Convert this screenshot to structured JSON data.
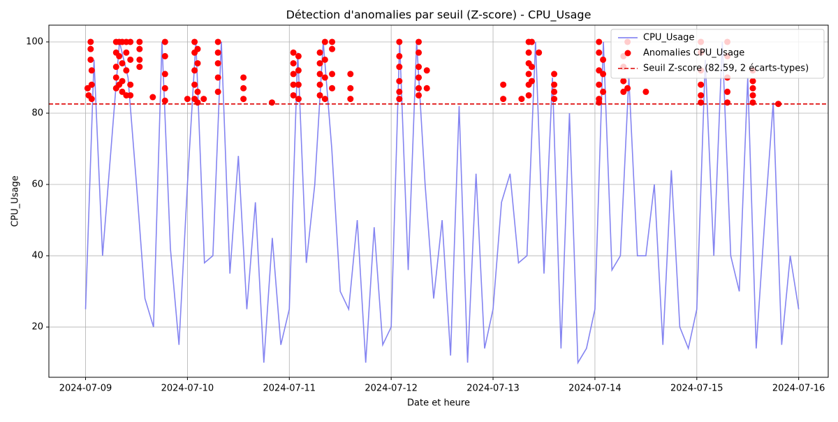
{
  "chart_data": {
    "type": "line",
    "title": "Détection d'anomalies par seuil (Z-score) - CPU_Usage",
    "x_label": "Date et heure",
    "y_label": "CPU_Usage",
    "xlim": [
      -0.36,
      7.29
    ],
    "ylim": [
      5.9,
      104.7
    ],
    "xticks": [
      {
        "value": 0,
        "label": "2024-07-09"
      },
      {
        "value": 1,
        "label": "2024-07-10"
      },
      {
        "value": 2,
        "label": "2024-07-11"
      },
      {
        "value": 3,
        "label": "2024-07-12"
      },
      {
        "value": 4,
        "label": "2024-07-13"
      },
      {
        "value": 5,
        "label": "2024-07-14"
      },
      {
        "value": 6,
        "label": "2024-07-15"
      },
      {
        "value": 7,
        "label": "2024-07-16"
      }
    ],
    "yticks": [
      20,
      40,
      60,
      80,
      100
    ],
    "grid": true,
    "legend": "upper right",
    "series": [
      {
        "name": "CPU_Usage",
        "type": "line",
        "color": "#7777f0",
        "x": [
          0,
          0.083,
          0.167,
          0.25,
          0.333,
          0.417,
          0.5,
          0.583,
          0.667,
          0.75,
          0.833,
          0.917,
          1,
          1.083,
          1.167,
          1.25,
          1.333,
          1.417,
          1.5,
          1.583,
          1.667,
          1.75,
          1.833,
          1.917,
          2,
          2.083,
          2.167,
          2.25,
          2.333,
          2.417,
          2.5,
          2.583,
          2.667,
          2.75,
          2.833,
          2.917,
          3,
          3.083,
          3.167,
          3.25,
          3.333,
          3.417,
          3.5,
          3.583,
          3.667,
          3.75,
          3.833,
          3.917,
          4,
          4.083,
          4.167,
          4.25,
          4.333,
          4.417,
          4.5,
          4.583,
          4.667,
          4.75,
          4.833,
          4.917,
          5,
          5.083,
          5.167,
          5.25,
          5.333,
          5.417,
          5.5,
          5.583,
          5.667,
          5.75,
          5.833,
          5.917,
          6,
          6.083,
          6.167,
          6.25,
          6.333,
          6.417,
          6.5,
          6.583,
          6.667,
          6.75,
          6.833,
          6.917,
          7
        ],
        "values": [
          25,
          95,
          40,
          70,
          100,
          90,
          60,
          28,
          20,
          100,
          42,
          15,
          60,
          100,
          38,
          40,
          100,
          35,
          68,
          25,
          55,
          10,
          45,
          15,
          25,
          97,
          38,
          60,
          100,
          70,
          30,
          25,
          50,
          10,
          48,
          15,
          20,
          100,
          36,
          100,
          60,
          28,
          50,
          12,
          82,
          10,
          63,
          14,
          25,
          55,
          63,
          38,
          40,
          100,
          35,
          90,
          14,
          80,
          10,
          14,
          25,
          100,
          36,
          40,
          90,
          40,
          40,
          60,
          15,
          64,
          20,
          14,
          25,
          95,
          40,
          100,
          40,
          30,
          90,
          14,
          50,
          83,
          15,
          40,
          25
        ]
      },
      {
        "name": "Anomalies CPU_Usage",
        "type": "scatter",
        "color": "#ff0000",
        "x": [
          0.02,
          0.03,
          0.05,
          0.05,
          0.05,
          0.06,
          0.06,
          0.06,
          0.3,
          0.3,
          0.3,
          0.3,
          0.3,
          0.33,
          0.33,
          0.33,
          0.36,
          0.36,
          0.36,
          0.36,
          0.4,
          0.4,
          0.4,
          0.4,
          0.44,
          0.44,
          0.44,
          0.44,
          0.53,
          0.53,
          0.53,
          0.53,
          0.66,
          0.78,
          0.78,
          0.78,
          0.78,
          0.78,
          1.0,
          1.07,
          1.07,
          1.07,
          1.07,
          1.07,
          1.1,
          1.1,
          1.1,
          1.1,
          1.16,
          1.3,
          1.3,
          1.3,
          1.3,
          1.3,
          1.55,
          1.55,
          1.55,
          1.83,
          2.04,
          2.04,
          2.04,
          2.04,
          2.04,
          2.09,
          2.09,
          2.09,
          2.09,
          2.3,
          2.3,
          2.3,
          2.3,
          2.3,
          2.35,
          2.35,
          2.35,
          2.35,
          2.42,
          2.42,
          2.42,
          2.42,
          2.6,
          2.6,
          2.6,
          3.08,
          3.08,
          3.08,
          3.08,
          3.08,
          3.08,
          3.27,
          3.27,
          3.27,
          3.27,
          3.27,
          3.27,
          3.35,
          3.35,
          4.1,
          4.1,
          4.28,
          4.35,
          4.35,
          4.35,
          4.35,
          4.35,
          4.35,
          4.38,
          4.38,
          4.38,
          4.45,
          4.6,
          4.6,
          4.6,
          4.6,
          5.04,
          5.04,
          5.04,
          5.04,
          5.04,
          5.04,
          5.08,
          5.08,
          5.08,
          5.28,
          5.28,
          5.28,
          5.28,
          5.32,
          5.32,
          5.5,
          6.04,
          6.04,
          6.04,
          6.04,
          6.04,
          6.04,
          6.3,
          6.3,
          6.3,
          6.3,
          6.3,
          6.55,
          6.55,
          6.55,
          6.55,
          6.55,
          6.8
        ],
        "values": [
          87,
          85,
          100,
          98,
          95,
          92,
          88,
          84,
          100,
          97,
          93,
          90,
          87,
          100,
          96,
          88,
          100,
          94,
          89,
          86,
          100,
          97,
          92,
          85,
          100,
          95,
          88,
          85,
          100,
          98,
          95,
          93,
          84.5,
          100,
          96,
          91,
          87,
          83.5,
          84,
          100,
          97,
          92,
          88,
          84,
          98,
          94,
          86,
          83,
          84,
          100,
          97,
          94,
          90,
          86,
          90,
          87,
          84,
          83,
          97,
          94,
          91,
          88,
          85,
          96,
          92,
          88,
          84,
          97,
          94,
          91,
          88,
          85,
          100,
          95,
          90,
          84,
          100,
          98,
          91,
          87,
          91,
          87,
          84,
          100,
          96,
          93,
          89,
          86,
          84,
          100,
          97,
          93,
          90,
          87,
          85,
          92,
          87,
          88,
          84,
          84,
          100,
          97,
          94,
          91,
          88,
          85,
          100,
          93,
          89,
          97,
          91,
          88,
          86,
          84,
          100,
          97,
          92,
          88,
          84,
          83,
          95,
          91,
          86,
          96,
          93,
          89,
          86,
          100,
          87,
          86,
          100,
          97,
          92,
          88,
          85,
          83,
          100,
          96,
          90,
          86,
          83,
          92,
          89,
          87,
          85,
          83,
          82.6
        ]
      }
    ],
    "threshold": {
      "name": "Seuil Z-score (82.59, 2 écarts-types)",
      "value": 82.59,
      "color": "#dd0000"
    }
  }
}
